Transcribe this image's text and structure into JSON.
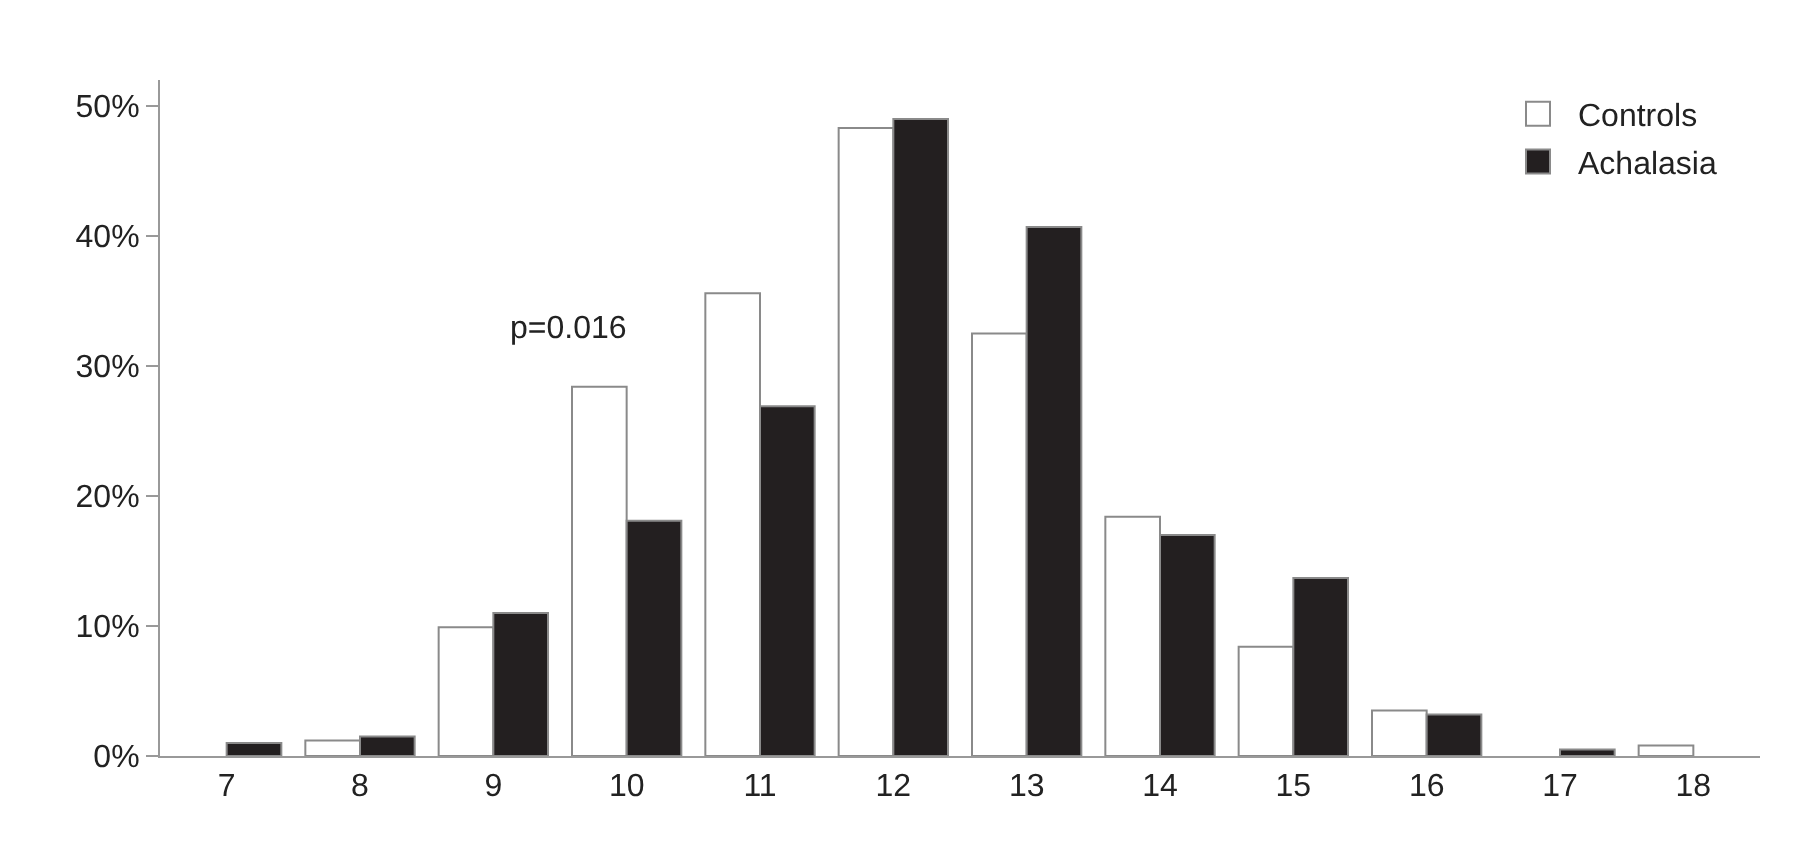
{
  "chart_data": {
    "type": "bar",
    "categories": [
      "7",
      "8",
      "9",
      "10",
      "11",
      "12",
      "13",
      "14",
      "15",
      "16",
      "17",
      "18"
    ],
    "series": [
      {
        "name": "Controls",
        "color": "#ffffff",
        "values": [
          null,
          1.2,
          9.9,
          28.4,
          35.6,
          48.3,
          32.5,
          18.4,
          8.4,
          3.5,
          null,
          0.8
        ]
      },
      {
        "name": "Achalasia",
        "color": "#231f20",
        "values": [
          1.0,
          1.5,
          11.0,
          18.1,
          26.9,
          49.0,
          40.7,
          17.0,
          13.7,
          3.2,
          0.5,
          null
        ]
      }
    ],
    "ylim": [
      0,
      52
    ],
    "yticks": [
      {
        "value": 0,
        "label": "0%"
      },
      {
        "value": 10,
        "label": "10%"
      },
      {
        "value": 20,
        "label": "20%"
      },
      {
        "value": 30,
        "label": "30%"
      },
      {
        "value": 40,
        "label": "40%"
      },
      {
        "value": 50,
        "label": "50%"
      }
    ],
    "annotations": [
      "p=0.016"
    ],
    "grid": false,
    "legend": "top right"
  }
}
